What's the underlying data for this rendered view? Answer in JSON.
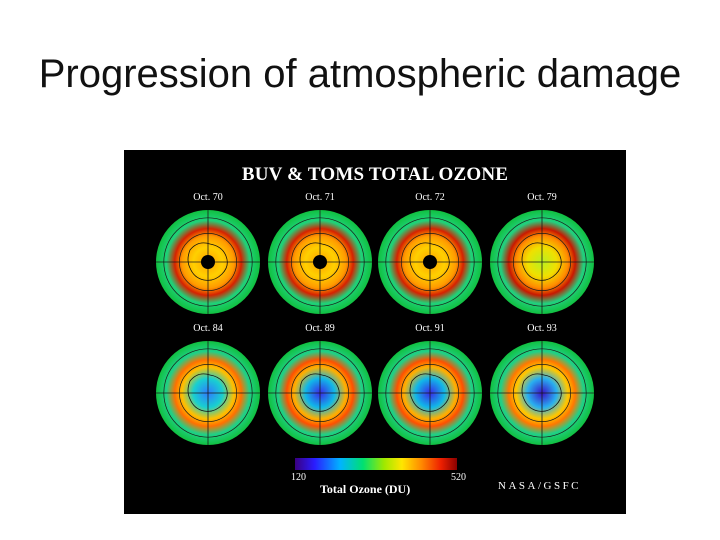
{
  "slide": {
    "title": "Progression of atmospheric damage"
  },
  "figure": {
    "title": "BUV & TOMS TOTAL OZONE",
    "panels": [
      {
        "label": "Oct. 70",
        "state": "high"
      },
      {
        "label": "Oct. 71",
        "state": "high"
      },
      {
        "label": "Oct. 72",
        "state": "high"
      },
      {
        "label": "Oct. 79",
        "state": "early"
      },
      {
        "label": "Oct. 84",
        "state": "hole"
      },
      {
        "label": "Oct. 89",
        "state": "deep"
      },
      {
        "label": "Oct. 91",
        "state": "deep"
      },
      {
        "label": "Oct. 93",
        "state": "deepest"
      }
    ],
    "colorbar": {
      "min": "120",
      "max": "520",
      "title": "Total Ozone (DU)"
    },
    "credit": "NASA/GSFC"
  }
}
